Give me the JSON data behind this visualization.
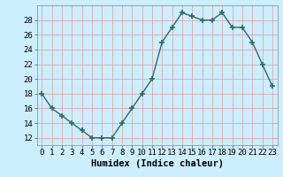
{
  "x": [
    0,
    1,
    2,
    3,
    4,
    5,
    6,
    7,
    8,
    9,
    10,
    11,
    12,
    13,
    14,
    15,
    16,
    17,
    18,
    19,
    20,
    21,
    22,
    23
  ],
  "y": [
    18,
    16,
    15,
    14,
    13,
    12,
    12,
    12,
    14,
    16,
    18,
    20,
    25,
    27,
    29,
    28.5,
    28,
    28,
    29,
    27,
    27,
    25,
    22,
    19
  ],
  "line_color": "#2e6b6b",
  "marker": "+",
  "marker_size": 4,
  "bg_color": "#cceeff",
  "grid_color": "#ddaaaa",
  "title": "",
  "xlabel": "Humidex (Indice chaleur)",
  "ylabel": "",
  "xlim": [
    -0.5,
    23.5
  ],
  "ylim": [
    11,
    30
  ],
  "yticks": [
    12,
    14,
    16,
    18,
    20,
    22,
    24,
    26,
    28
  ],
  "xticks": [
    0,
    1,
    2,
    3,
    4,
    5,
    6,
    7,
    8,
    9,
    10,
    11,
    12,
    13,
    14,
    15,
    16,
    17,
    18,
    19,
    20,
    21,
    22,
    23
  ],
  "tick_fontsize": 6.5,
  "xlabel_fontsize": 7.5,
  "linewidth": 1.0
}
